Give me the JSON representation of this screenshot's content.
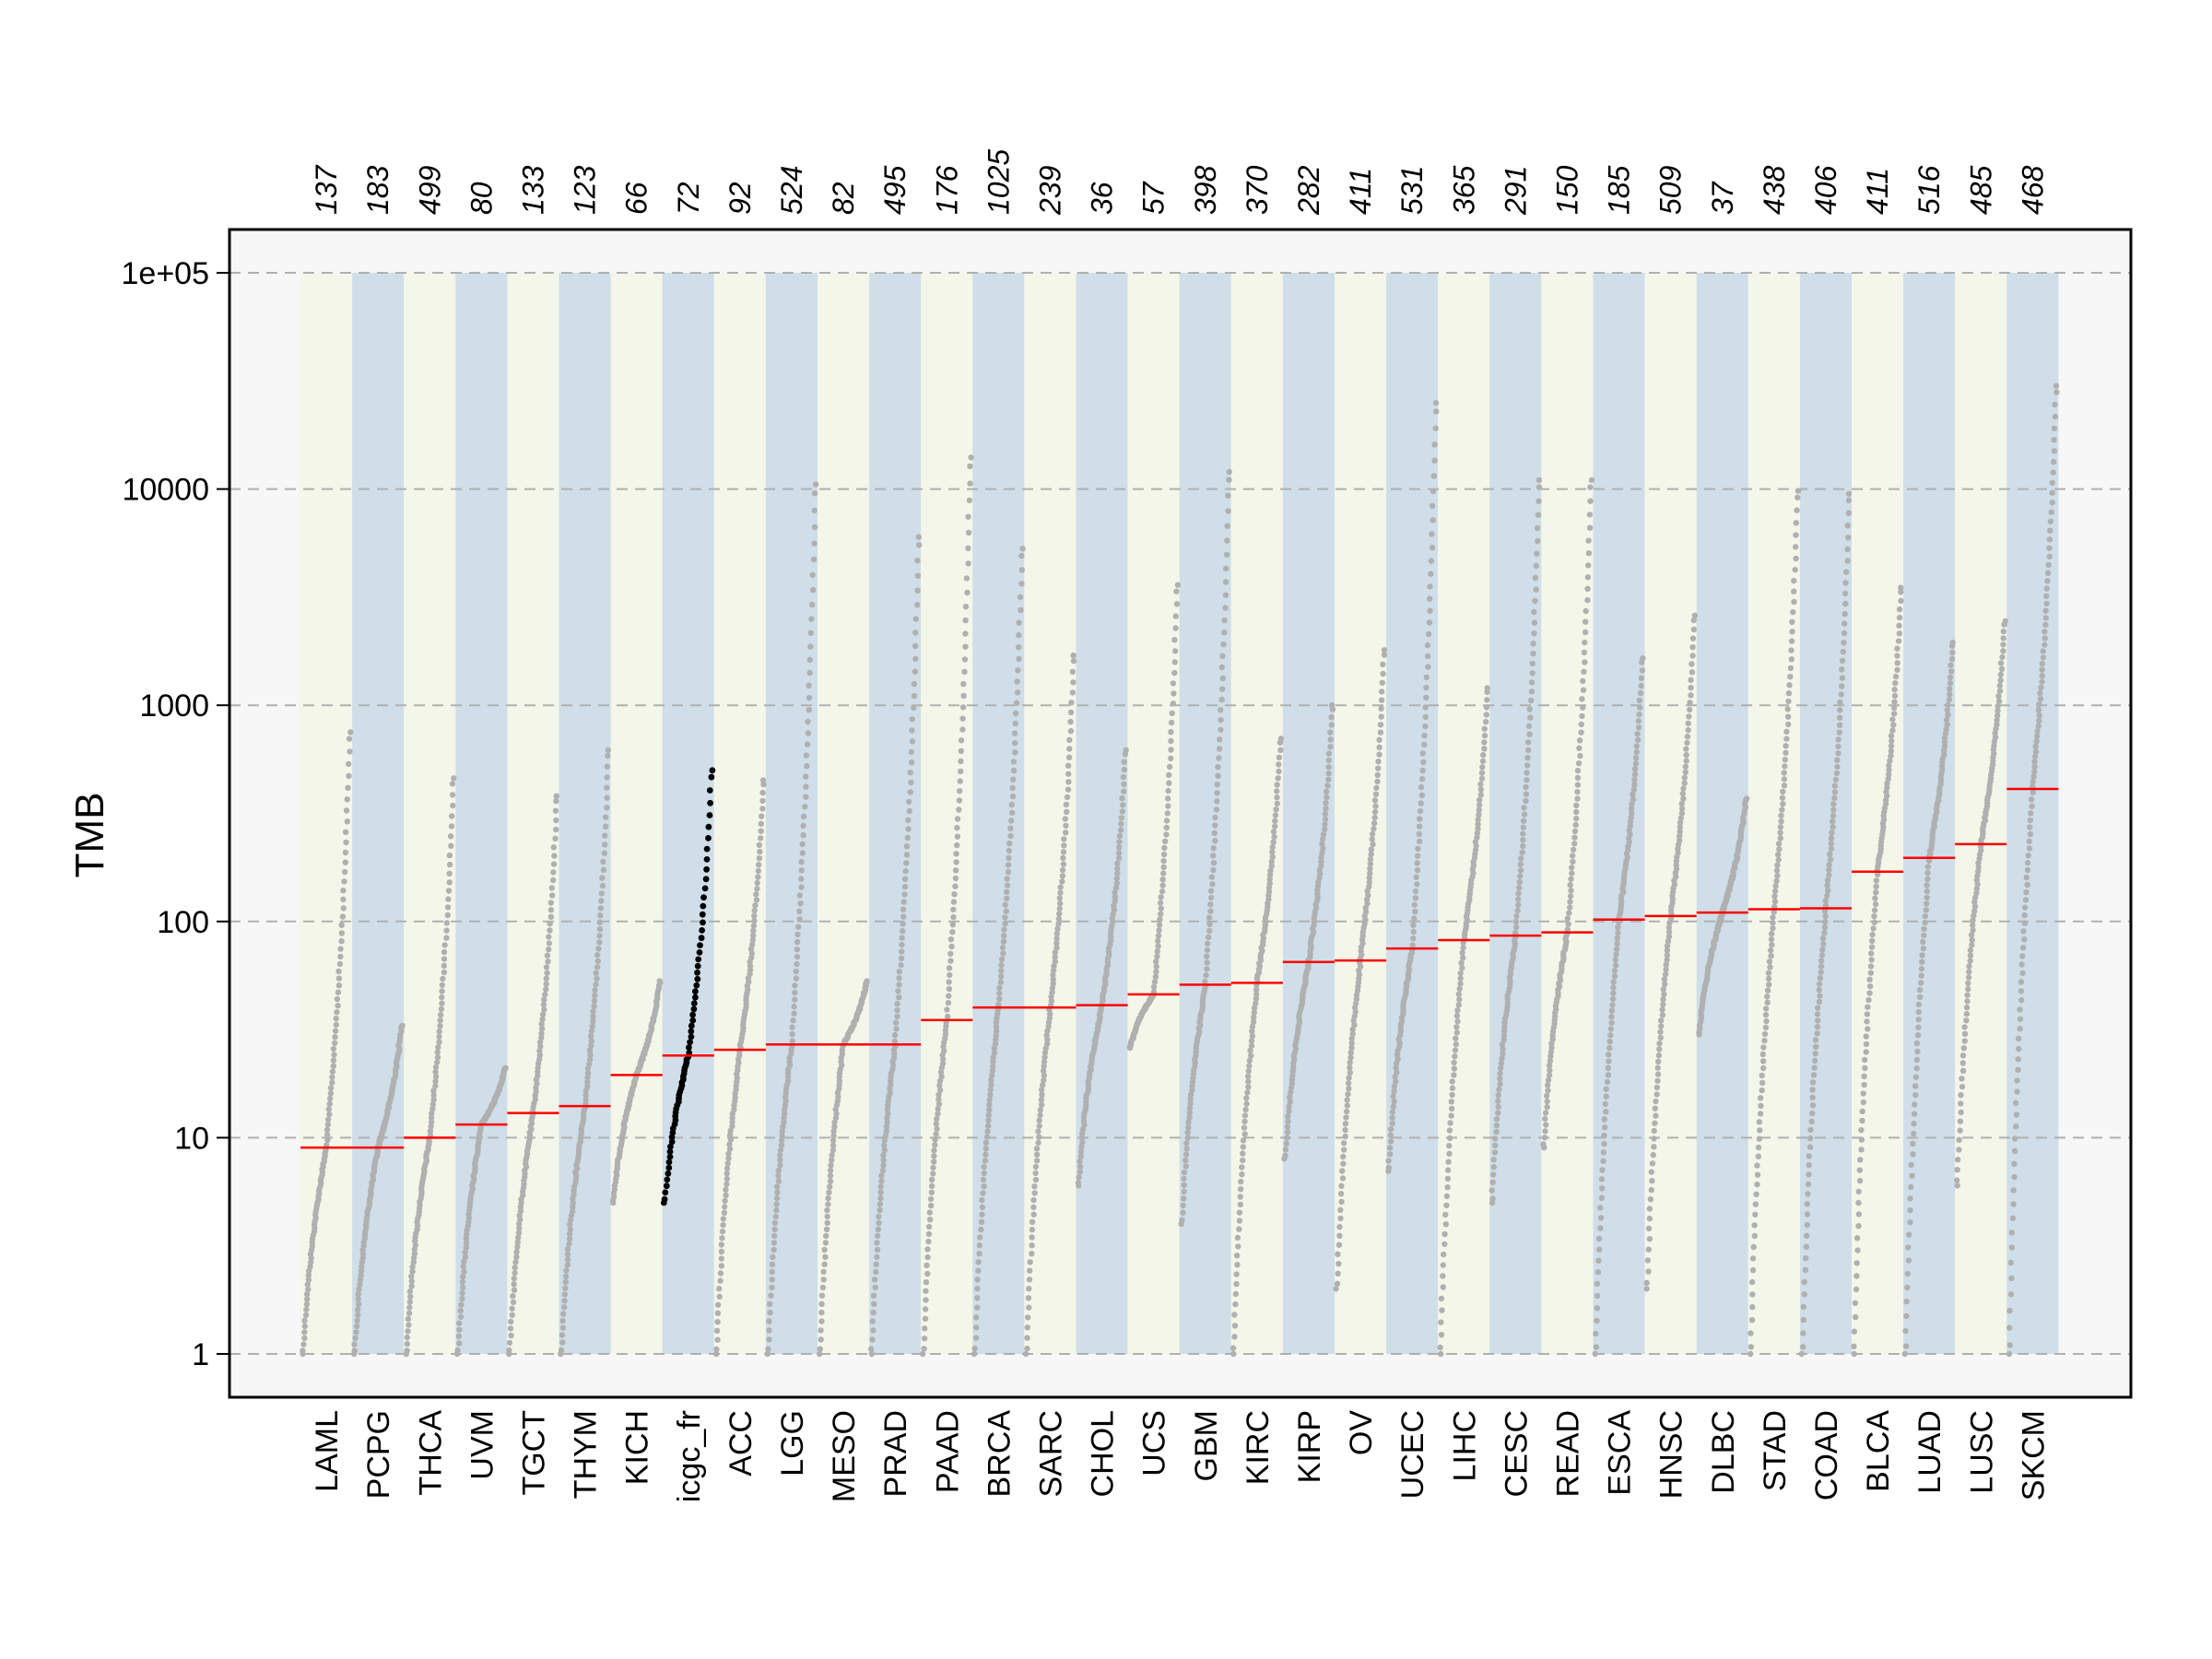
{
  "chart_data": {
    "type": "scatter",
    "title": "",
    "xlabel": "",
    "ylabel": "TMB",
    "y_scale": "log10",
    "ylim": [
      1,
      100000
    ],
    "y_ticks": [
      1,
      10,
      100,
      1000,
      10000,
      100000
    ],
    "y_tick_labels": [
      "1",
      "10",
      "100",
      "1000",
      "10000",
      "1e+05"
    ],
    "grid": "horizontal dashed at y ticks",
    "legend": "none",
    "colors": {
      "band_odd": "#f4f6e9",
      "band_even": "#cfdee8",
      "panel_bg": "#f7f7f7",
      "points": "#b0b0b0",
      "highlight_points": "#000000",
      "median_line": "#ff0000",
      "grid": "#b0b0b0"
    },
    "highlighted_category": "icgc_fr",
    "categories": [
      "LAML",
      "PCPG",
      "THCA",
      "UVM",
      "TGCT",
      "THYM",
      "KICH",
      "icgc_fr",
      "ACC",
      "LGG",
      "MESO",
      "PRAD",
      "PAAD",
      "BRCA",
      "SARC",
      "CHOL",
      "UCS",
      "GBM",
      "KIRC",
      "KIRP",
      "OV",
      "UCEC",
      "LIHC",
      "CESC",
      "READ",
      "ESCA",
      "HNSC",
      "DLBC",
      "STAD",
      "COAD",
      "BLCA",
      "LUAD",
      "LUSC",
      "SKCM"
    ],
    "sample_counts": [
      "137",
      "183",
      "499",
      "80",
      "133",
      "123",
      "66",
      "72",
      "92",
      "524",
      "82",
      "495",
      "176",
      "1025",
      "239",
      "36",
      "57",
      "398",
      "370",
      "282",
      "411",
      "531",
      "365",
      "291",
      "150",
      "185",
      "509",
      "37",
      "438",
      "406",
      "411",
      "516",
      "485",
      "468"
    ],
    "medians": [
      9,
      9,
      10,
      11.5,
      13,
      14,
      19.5,
      24,
      25.5,
      27,
      27,
      27,
      35,
      40,
      40,
      41,
      46,
      51,
      52,
      65,
      66,
      75,
      82,
      86,
      89,
      102,
      106,
      110,
      114,
      115,
      170,
      197,
      228,
      410
    ],
    "min_values": [
      1,
      1,
      1,
      1,
      1,
      1,
      5,
      5,
      1,
      1,
      1,
      1,
      1,
      1,
      1,
      6,
      26,
      4,
      1,
      8,
      2,
      7,
      1,
      5,
      9,
      1,
      2,
      30,
      1,
      1,
      1,
      1,
      6,
      1
    ],
    "max_values": [
      750,
      33,
      460,
      21,
      380,
      620,
      53,
      500,
      450,
      10500,
      53,
      6000,
      14000,
      5300,
      1700,
      620,
      3600,
      12000,
      700,
      1000,
      1800,
      25000,
      1200,
      11000,
      11000,
      1650,
      2600,
      370,
      9800,
      9500,
      3500,
      1950,
      2450,
      30000
    ]
  }
}
